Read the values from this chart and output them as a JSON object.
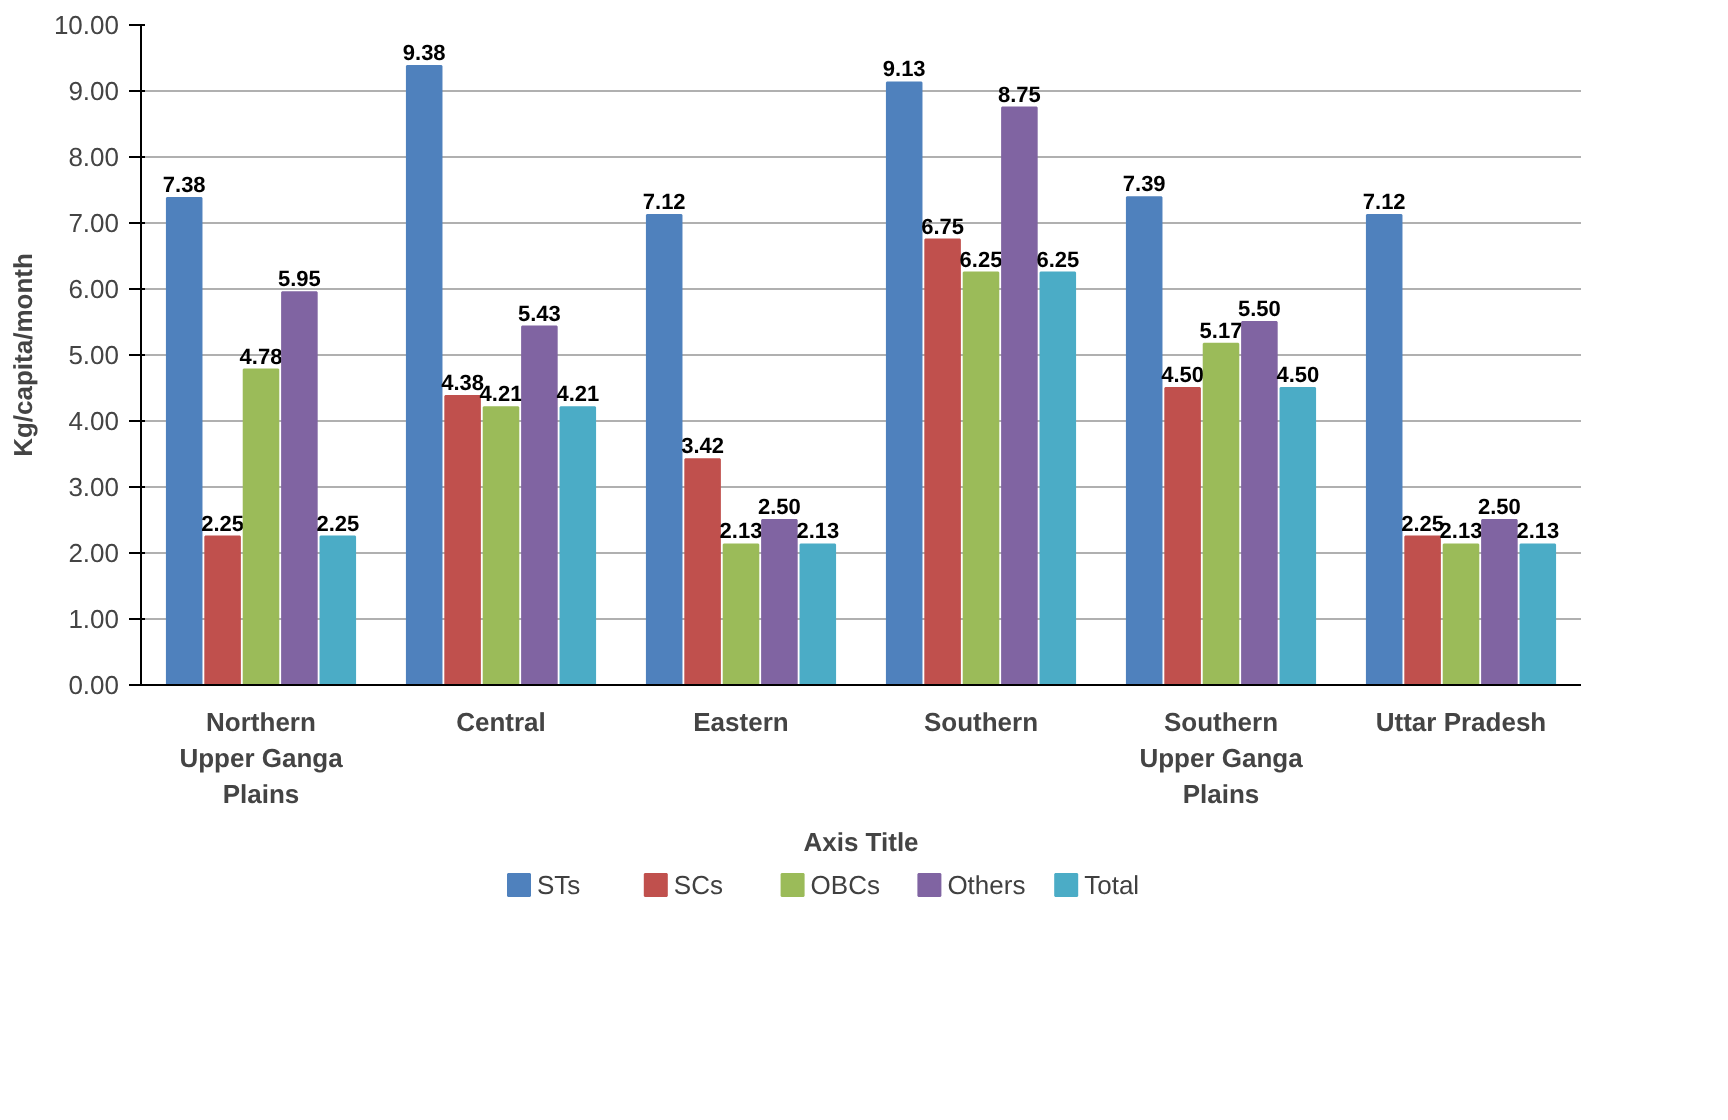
{
  "chart_data": {
    "type": "bar",
    "xlabel": "Axis Title",
    "ylabel": "Kg/capita/month",
    "categories": [
      "Northern Upper Ganga Plains",
      "Central",
      "Eastern",
      "Southern",
      "Southern Upper Ganga Plains",
      "Uttar Pradesh"
    ],
    "series": [
      {
        "name": "STs",
        "color": "#4f81bd",
        "values": [
          7.38,
          9.38,
          7.12,
          9.13,
          7.39,
          7.12
        ],
        "value_labels": [
          "7.38",
          "9.38",
          "7.12",
          "9.13",
          "7.39",
          "7.12"
        ]
      },
      {
        "name": "SCs",
        "color": "#c0504d",
        "values": [
          2.25,
          4.38,
          3.42,
          6.75,
          4.5,
          2.25
        ],
        "value_labels": [
          "2.25",
          "4.38",
          "3.42",
          "6.75",
          "4.50",
          "2.25"
        ]
      },
      {
        "name": "OBCs",
        "color": "#9bbb59",
        "values": [
          4.78,
          4.21,
          2.13,
          6.25,
          5.17,
          2.13
        ],
        "value_labels": [
          "4.78",
          "4.21",
          "2.13",
          "6.25",
          "5.17",
          "2.13"
        ]
      },
      {
        "name": "Others",
        "color": "#8064a2",
        "values": [
          5.95,
          5.43,
          2.5,
          8.75,
          5.5,
          2.5
        ],
        "value_labels": [
          "5.95",
          "5.43",
          "2.50",
          "8.75",
          "5.50",
          "2.50"
        ]
      },
      {
        "name": "Total",
        "color": "#4bacc6",
        "values": [
          2.25,
          4.21,
          2.13,
          6.25,
          4.5,
          2.13
        ],
        "value_labels": [
          "2.25",
          "4.21",
          "2.13",
          "6.25",
          "4.50",
          "2.13"
        ]
      }
    ],
    "ylim": [
      0,
      10
    ],
    "yticks": [
      {
        "value": 0,
        "label": "0.00"
      },
      {
        "value": 1,
        "label": "1.00"
      },
      {
        "value": 2,
        "label": "2.00"
      },
      {
        "value": 3,
        "label": "3.00"
      },
      {
        "value": 4,
        "label": "4.00"
      },
      {
        "value": 5,
        "label": "5.00"
      },
      {
        "value": 6,
        "label": "6.00"
      },
      {
        "value": 7,
        "label": "7.00"
      },
      {
        "value": 8,
        "label": "8.00"
      },
      {
        "value": 9,
        "label": "9.00"
      },
      {
        "value": 10,
        "label": "10.00"
      }
    ],
    "grid": "y",
    "legend": "bottom"
  }
}
